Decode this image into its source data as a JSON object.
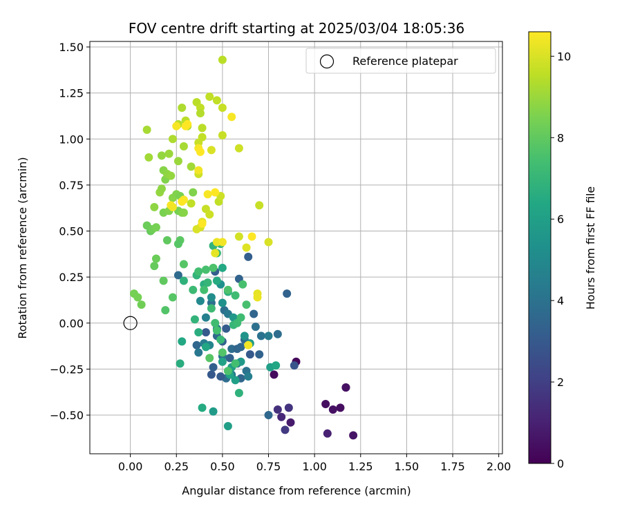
{
  "chart_data": {
    "type": "scatter",
    "title": "FOV centre drift starting at 2025/03/04 18:05:36",
    "xlabel": "Angular distance from reference (arcmin)",
    "ylabel": "Rotation from reference (arcmin)",
    "xlim": [
      -0.22,
      2.02
    ],
    "ylim": [
      -0.71,
      1.53
    ],
    "xticks": [
      0.0,
      0.25,
      0.5,
      0.75,
      1.0,
      1.25,
      1.5,
      1.75,
      2.0
    ],
    "xtick_labels": [
      "0.00",
      "0.25",
      "0.50",
      "0.75",
      "1.00",
      "1.25",
      "1.50",
      "1.75",
      "2.00"
    ],
    "yticks": [
      -0.5,
      -0.25,
      0.0,
      0.25,
      0.5,
      0.75,
      1.0,
      1.25,
      1.5
    ],
    "ytick_labels": [
      "−0.50",
      "−0.25",
      "0.00",
      "0.25",
      "0.50",
      "0.75",
      "1.00",
      "1.25",
      "1.50"
    ],
    "grid": true,
    "legend": {
      "placement": "top-right",
      "entries": [
        {
          "label": "Reference platepar",
          "marker": "open-circle"
        }
      ]
    },
    "reference_point": {
      "x": 0.0,
      "y": 0.0
    },
    "colorbar": {
      "label": "Hours from first FF file",
      "range": [
        0,
        10.6
      ],
      "ticks": [
        0,
        2,
        4,
        6,
        8,
        10
      ],
      "tick_labels": [
        "0",
        "2",
        "4",
        "6",
        "8",
        "10"
      ],
      "colormap": "viridis"
    },
    "points": [
      {
        "x": 0.9,
        "y": -0.21,
        "h": 0.2
      },
      {
        "x": 0.78,
        "y": -0.28,
        "h": 0.3
      },
      {
        "x": 1.06,
        "y": -0.44,
        "h": 0.4
      },
      {
        "x": 1.1,
        "y": -0.47,
        "h": 0.5
      },
      {
        "x": 1.14,
        "y": -0.46,
        "h": 0.4
      },
      {
        "x": 1.17,
        "y": -0.35,
        "h": 0.4
      },
      {
        "x": 1.17,
        "y": -0.35,
        "h": 0.5
      },
      {
        "x": 1.21,
        "y": -0.61,
        "h": 0.6
      },
      {
        "x": 1.07,
        "y": -0.6,
        "h": 1.0
      },
      {
        "x": 0.87,
        "y": -0.54,
        "h": 0.8
      },
      {
        "x": 0.8,
        "y": -0.47,
        "h": 1.5
      },
      {
        "x": 0.82,
        "y": -0.51,
        "h": 1.2
      },
      {
        "x": 0.86,
        "y": -0.46,
        "h": 1.6
      },
      {
        "x": 0.84,
        "y": -0.58,
        "h": 1.8
      },
      {
        "x": 0.89,
        "y": -0.23,
        "h": 2.8
      },
      {
        "x": 0.85,
        "y": 0.16,
        "h": 3.4
      },
      {
        "x": 0.8,
        "y": -0.06,
        "h": 3.8
      },
      {
        "x": 0.75,
        "y": -0.5,
        "h": 3.6
      },
      {
        "x": 0.64,
        "y": 0.36,
        "h": 3.2
      },
      {
        "x": 0.67,
        "y": 0.05,
        "h": 3.5
      },
      {
        "x": 0.68,
        "y": -0.02,
        "h": 3.9
      },
      {
        "x": 0.7,
        "y": -0.17,
        "h": 3.4
      },
      {
        "x": 0.65,
        "y": -0.17,
        "h": 3.0
      },
      {
        "x": 0.71,
        "y": -0.07,
        "h": 4.0
      },
      {
        "x": 0.75,
        "y": -0.07,
        "h": 4.4
      },
      {
        "x": 0.62,
        "y": -0.09,
        "h": 3.7
      },
      {
        "x": 0.58,
        "y": -0.22,
        "h": 3.9
      },
      {
        "x": 0.6,
        "y": -0.13,
        "h": 3.6
      },
      {
        "x": 0.54,
        "y": -0.19,
        "h": 3.3
      },
      {
        "x": 0.6,
        "y": -0.3,
        "h": 3.5
      },
      {
        "x": 0.55,
        "y": -0.28,
        "h": 4.2
      },
      {
        "x": 0.52,
        "y": -0.3,
        "h": 3.8
      },
      {
        "x": 0.49,
        "y": -0.29,
        "h": 3.1
      },
      {
        "x": 0.44,
        "y": -0.28,
        "h": 3.0
      },
      {
        "x": 0.45,
        "y": -0.24,
        "h": 3.3
      },
      {
        "x": 0.5,
        "y": -0.18,
        "h": 4.0
      },
      {
        "x": 0.47,
        "y": -0.07,
        "h": 3.6
      },
      {
        "x": 0.5,
        "y": -0.1,
        "h": 3.3
      },
      {
        "x": 0.52,
        "y": -0.03,
        "h": 3.1
      },
      {
        "x": 0.51,
        "y": 0.07,
        "h": 3.9
      },
      {
        "x": 0.46,
        "y": 0.28,
        "h": 3.2
      },
      {
        "x": 0.59,
        "y": 0.24,
        "h": 3.4
      },
      {
        "x": 0.41,
        "y": -0.05,
        "h": 3.0
      },
      {
        "x": 0.36,
        "y": -0.12,
        "h": 3.5
      },
      {
        "x": 0.37,
        "y": -0.16,
        "h": 4.2
      },
      {
        "x": 0.4,
        "y": -0.11,
        "h": 4.4
      },
      {
        "x": 0.26,
        "y": 0.26,
        "h": 3.7
      },
      {
        "x": 0.44,
        "y": 0.11,
        "h": 3.9
      },
      {
        "x": 0.55,
        "y": -0.14,
        "h": 3.8
      },
      {
        "x": 0.58,
        "y": -0.14,
        "h": 3.5
      },
      {
        "x": 0.47,
        "y": -0.03,
        "h": 4.1
      },
      {
        "x": 0.53,
        "y": 0.05,
        "h": 4.3
      },
      {
        "x": 0.63,
        "y": -0.26,
        "h": 4.0
      },
      {
        "x": 0.64,
        "y": -0.29,
        "h": 4.5
      },
      {
        "x": 0.41,
        "y": 0.03,
        "h": 4.6
      },
      {
        "x": 0.43,
        "y": -0.12,
        "h": 4.8
      },
      {
        "x": 0.38,
        "y": 0.12,
        "h": 5.0
      },
      {
        "x": 0.44,
        "y": 0.14,
        "h": 5.2
      },
      {
        "x": 0.49,
        "y": 0.21,
        "h": 5.3
      },
      {
        "x": 0.5,
        "y": 0.11,
        "h": 5.4
      },
      {
        "x": 0.56,
        "y": 0.03,
        "h": 5.6
      },
      {
        "x": 0.62,
        "y": -0.07,
        "h": 5.5
      },
      {
        "x": 0.65,
        "y": -0.11,
        "h": 5.8
      },
      {
        "x": 0.6,
        "y": -0.21,
        "h": 5.7
      },
      {
        "x": 0.55,
        "y": -0.24,
        "h": 5.9
      },
      {
        "x": 0.5,
        "y": -0.21,
        "h": 6.1
      },
      {
        "x": 0.57,
        "y": -0.31,
        "h": 6.0
      },
      {
        "x": 0.54,
        "y": -0.28,
        "h": 6.2
      },
      {
        "x": 0.76,
        "y": -0.24,
        "h": 6.0
      },
      {
        "x": 0.79,
        "y": -0.23,
        "h": 6.3
      },
      {
        "x": 0.28,
        "y": -0.1,
        "h": 6.4
      },
      {
        "x": 0.27,
        "y": -0.22,
        "h": 6.6
      },
      {
        "x": 0.39,
        "y": -0.46,
        "h": 6.5
      },
      {
        "x": 0.45,
        "y": -0.48,
        "h": 5.8
      },
      {
        "x": 0.53,
        "y": -0.56,
        "h": 6.0
      },
      {
        "x": 0.59,
        "y": -0.38,
        "h": 6.8
      },
      {
        "x": 0.41,
        "y": -0.13,
        "h": 6.3
      },
      {
        "x": 0.37,
        "y": -0.05,
        "h": 6.6
      },
      {
        "x": 0.35,
        "y": 0.02,
        "h": 6.9
      },
      {
        "x": 0.29,
        "y": 0.23,
        "h": 6.8
      },
      {
        "x": 0.36,
        "y": 0.26,
        "h": 6.9
      },
      {
        "x": 0.4,
        "y": 0.21,
        "h": 6.7
      },
      {
        "x": 0.42,
        "y": 0.22,
        "h": 7.0
      },
      {
        "x": 0.47,
        "y": 0.23,
        "h": 6.5
      },
      {
        "x": 0.53,
        "y": 0.17,
        "h": 6.7
      },
      {
        "x": 0.5,
        "y": 0.3,
        "h": 6.4
      },
      {
        "x": 0.45,
        "y": 0.42,
        "h": 6.9
      },
      {
        "x": 0.47,
        "y": 0.38,
        "h": 7.1
      },
      {
        "x": 0.49,
        "y": 0.43,
        "h": 7.0
      },
      {
        "x": 0.44,
        "y": 0.08,
        "h": 7.2
      },
      {
        "x": 0.46,
        "y": 0.0,
        "h": 7.3
      },
      {
        "x": 0.47,
        "y": -0.04,
        "h": 7.4
      },
      {
        "x": 0.49,
        "y": -0.09,
        "h": 7.1
      },
      {
        "x": 0.56,
        "y": -0.01,
        "h": 7.0
      },
      {
        "x": 0.58,
        "y": 0.0,
        "h": 7.2
      },
      {
        "x": 0.6,
        "y": 0.03,
        "h": 7.3
      },
      {
        "x": 0.63,
        "y": 0.1,
        "h": 7.5
      },
      {
        "x": 0.57,
        "y": 0.15,
        "h": 7.3
      },
      {
        "x": 0.61,
        "y": 0.21,
        "h": 7.5
      },
      {
        "x": 0.53,
        "y": 0.18,
        "h": 7.6
      },
      {
        "x": 0.4,
        "y": 0.18,
        "h": 7.4
      },
      {
        "x": 0.34,
        "y": 0.18,
        "h": 7.2
      },
      {
        "x": 0.37,
        "y": 0.28,
        "h": 7.4
      },
      {
        "x": 0.45,
        "y": 0.3,
        "h": 7.6
      },
      {
        "x": 0.41,
        "y": 0.29,
        "h": 7.5
      },
      {
        "x": 0.53,
        "y": -0.26,
        "h": 7.6
      },
      {
        "x": 0.57,
        "y": -0.22,
        "h": 7.4
      },
      {
        "x": 0.5,
        "y": -0.16,
        "h": 7.7
      },
      {
        "x": 0.43,
        "y": -0.19,
        "h": 7.8
      },
      {
        "x": 0.19,
        "y": 0.07,
        "h": 7.7
      },
      {
        "x": 0.23,
        "y": 0.14,
        "h": 7.8
      },
      {
        "x": 0.27,
        "y": 0.45,
        "h": 7.9
      },
      {
        "x": 0.2,
        "y": 0.45,
        "h": 8.0
      },
      {
        "x": 0.26,
        "y": 0.43,
        "h": 7.8
      },
      {
        "x": 0.29,
        "y": 0.32,
        "h": 7.8
      },
      {
        "x": 0.18,
        "y": 0.23,
        "h": 8.0
      },
      {
        "x": 0.13,
        "y": 0.31,
        "h": 8.1
      },
      {
        "x": 0.14,
        "y": 0.35,
        "h": 8.2
      },
      {
        "x": 0.06,
        "y": 0.1,
        "h": 8.3
      },
      {
        "x": 0.04,
        "y": 0.14,
        "h": 8.4
      },
      {
        "x": 0.02,
        "y": 0.16,
        "h": 8.4
      },
      {
        "x": 0.09,
        "y": 0.53,
        "h": 8.2
      },
      {
        "x": 0.11,
        "y": 0.5,
        "h": 8.1
      },
      {
        "x": 0.12,
        "y": 0.51,
        "h": 8.3
      },
      {
        "x": 0.14,
        "y": 0.52,
        "h": 8.4
      },
      {
        "x": 0.18,
        "y": 0.6,
        "h": 8.5
      },
      {
        "x": 0.21,
        "y": 0.61,
        "h": 8.6
      },
      {
        "x": 0.23,
        "y": 0.68,
        "h": 8.7
      },
      {
        "x": 0.25,
        "y": 0.7,
        "h": 8.6
      },
      {
        "x": 0.27,
        "y": 0.69,
        "h": 8.5
      },
      {
        "x": 0.26,
        "y": 0.61,
        "h": 8.4
      },
      {
        "x": 0.28,
        "y": 0.6,
        "h": 8.6
      },
      {
        "x": 0.29,
        "y": 0.6,
        "h": 8.7
      },
      {
        "x": 0.34,
        "y": 0.71,
        "h": 8.6
      },
      {
        "x": 0.13,
        "y": 0.63,
        "h": 8.8
      },
      {
        "x": 0.16,
        "y": 0.71,
        "h": 8.9
      },
      {
        "x": 0.17,
        "y": 0.73,
        "h": 8.8
      },
      {
        "x": 0.18,
        "y": 0.83,
        "h": 8.7
      },
      {
        "x": 0.19,
        "y": 0.78,
        "h": 8.6
      },
      {
        "x": 0.2,
        "y": 0.81,
        "h": 8.8
      },
      {
        "x": 0.22,
        "y": 0.8,
        "h": 8.9
      },
      {
        "x": 0.21,
        "y": 0.92,
        "h": 9.0
      },
      {
        "x": 0.17,
        "y": 0.91,
        "h": 8.9
      },
      {
        "x": 0.1,
        "y": 0.9,
        "h": 9.1
      },
      {
        "x": 0.09,
        "y": 1.05,
        "h": 9.2
      },
      {
        "x": 0.26,
        "y": 0.88,
        "h": 9.0
      },
      {
        "x": 0.33,
        "y": 0.85,
        "h": 9.1
      },
      {
        "x": 0.29,
        "y": 0.96,
        "h": 9.2
      },
      {
        "x": 0.23,
        "y": 1.0,
        "h": 9.3
      },
      {
        "x": 0.26,
        "y": 1.08,
        "h": 9.4
      },
      {
        "x": 0.28,
        "y": 1.17,
        "h": 9.3
      },
      {
        "x": 0.3,
        "y": 1.1,
        "h": 9.5
      },
      {
        "x": 0.31,
        "y": 1.07,
        "h": 9.4
      },
      {
        "x": 0.36,
        "y": 1.2,
        "h": 9.5
      },
      {
        "x": 0.38,
        "y": 1.17,
        "h": 9.6
      },
      {
        "x": 0.39,
        "y": 1.06,
        "h": 9.5
      },
      {
        "x": 0.39,
        "y": 1.01,
        "h": 9.6
      },
      {
        "x": 0.37,
        "y": 0.98,
        "h": 9.7
      },
      {
        "x": 0.38,
        "y": 1.14,
        "h": 9.4
      },
      {
        "x": 0.43,
        "y": 1.23,
        "h": 9.6
      },
      {
        "x": 0.5,
        "y": 1.17,
        "h": 9.7
      },
      {
        "x": 0.5,
        "y": 1.43,
        "h": 9.5
      },
      {
        "x": 0.47,
        "y": 1.21,
        "h": 9.6
      },
      {
        "x": 0.5,
        "y": 1.02,
        "h": 9.7
      },
      {
        "x": 0.59,
        "y": 0.95,
        "h": 9.8
      },
      {
        "x": 0.44,
        "y": 0.94,
        "h": 10.0
      },
      {
        "x": 0.37,
        "y": 0.81,
        "h": 9.8
      },
      {
        "x": 0.33,
        "y": 0.65,
        "h": 9.6
      },
      {
        "x": 0.41,
        "y": 0.62,
        "h": 9.7
      },
      {
        "x": 0.43,
        "y": 0.59,
        "h": 9.8
      },
      {
        "x": 0.48,
        "y": 0.66,
        "h": 9.6
      },
      {
        "x": 0.49,
        "y": 0.69,
        "h": 9.8
      },
      {
        "x": 0.38,
        "y": 0.52,
        "h": 9.9
      },
      {
        "x": 0.36,
        "y": 0.51,
        "h": 10.0
      },
      {
        "x": 0.39,
        "y": 0.55,
        "h": 10.1
      },
      {
        "x": 0.59,
        "y": 0.47,
        "h": 9.9
      },
      {
        "x": 0.63,
        "y": 0.41,
        "h": 10.1
      },
      {
        "x": 0.46,
        "y": 0.38,
        "h": 10.2
      },
      {
        "x": 0.7,
        "y": 0.64,
        "h": 9.7
      },
      {
        "x": 0.75,
        "y": 0.44,
        "h": 10.0
      },
      {
        "x": 0.69,
        "y": 0.16,
        "h": 10.2
      },
      {
        "x": 0.69,
        "y": 0.14,
        "h": 10.3
      },
      {
        "x": 0.64,
        "y": -0.12,
        "h": 10.4
      },
      {
        "x": 0.47,
        "y": 0.44,
        "h": 10.3
      },
      {
        "x": 0.5,
        "y": 0.44,
        "h": 10.4
      },
      {
        "x": 0.55,
        "y": 1.12,
        "h": 10.5
      },
      {
        "x": 0.3,
        "y": 1.07,
        "h": 10.6
      },
      {
        "x": 0.31,
        "y": 1.08,
        "h": 10.6
      },
      {
        "x": 0.25,
        "y": 1.07,
        "h": 10.5
      },
      {
        "x": 0.37,
        "y": 0.95,
        "h": 10.5
      },
      {
        "x": 0.38,
        "y": 0.93,
        "h": 10.6
      },
      {
        "x": 0.37,
        "y": 0.83,
        "h": 10.4
      },
      {
        "x": 0.42,
        "y": 0.7,
        "h": 10.5
      },
      {
        "x": 0.46,
        "y": 0.71,
        "h": 10.6
      },
      {
        "x": 0.29,
        "y": 0.67,
        "h": 10.5
      },
      {
        "x": 0.28,
        "y": 0.66,
        "h": 10.6
      },
      {
        "x": 0.22,
        "y": 0.64,
        "h": 10.5
      },
      {
        "x": 0.23,
        "y": 0.63,
        "h": 10.4
      },
      {
        "x": 0.66,
        "y": 0.47,
        "h": 10.6
      },
      {
        "x": 0.39,
        "y": 0.54,
        "h": 10.6
      }
    ]
  }
}
